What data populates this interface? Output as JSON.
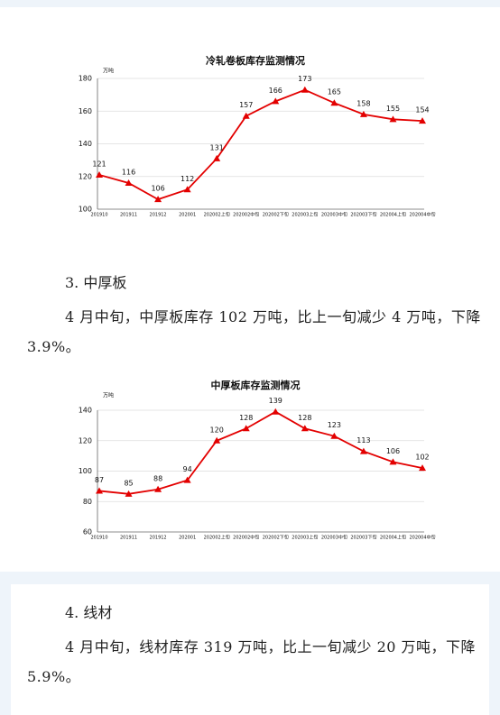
{
  "chart_data": [
    {
      "type": "line",
      "title": "冷轧卷板库存监测情况",
      "unit": "万吨",
      "categories": [
        "201910",
        "201911",
        "201912",
        "202001",
        "202002上旬",
        "202002中旬",
        "202002下旬",
        "202003上旬",
        "202003中旬",
        "202003下旬",
        "202004上旬",
        "202004中旬"
      ],
      "series": [
        {
          "name": "冷轧卷板",
          "color": "#e30000",
          "values": [
            121,
            116,
            106,
            112,
            131,
            157,
            166,
            173,
            165,
            158,
            155,
            154
          ]
        }
      ],
      "ylim": [
        100,
        180
      ],
      "yticks": [
        100,
        120,
        140,
        160,
        180
      ],
      "grid": true
    },
    {
      "type": "line",
      "title": "中厚板库存监测情况",
      "unit": "万吨",
      "categories": [
        "201910",
        "201911",
        "201912",
        "202001",
        "202002上旬",
        "202002中旬",
        "202002下旬",
        "202003上旬",
        "202003中旬",
        "202003下旬",
        "202004上旬",
        "202004中旬"
      ],
      "series": [
        {
          "name": "中厚板",
          "color": "#e30000",
          "values": [
            87,
            85,
            88,
            94,
            120,
            128,
            139,
            128,
            123,
            113,
            106,
            102
          ]
        }
      ],
      "ylim": [
        60,
        140
      ],
      "yticks": [
        60,
        80,
        100,
        120,
        140
      ],
      "grid": true
    }
  ],
  "sections": [
    {
      "heading": "3. 中厚板",
      "text": "4 月中旬，中厚板库存 102 万吨，比上一旬减少 4 万吨，下降 3.9%。"
    },
    {
      "heading": "4. 线材",
      "text": "4 月中旬，线材库存 319 万吨，比上一旬减少 20 万吨，下降 5.9%。"
    }
  ]
}
